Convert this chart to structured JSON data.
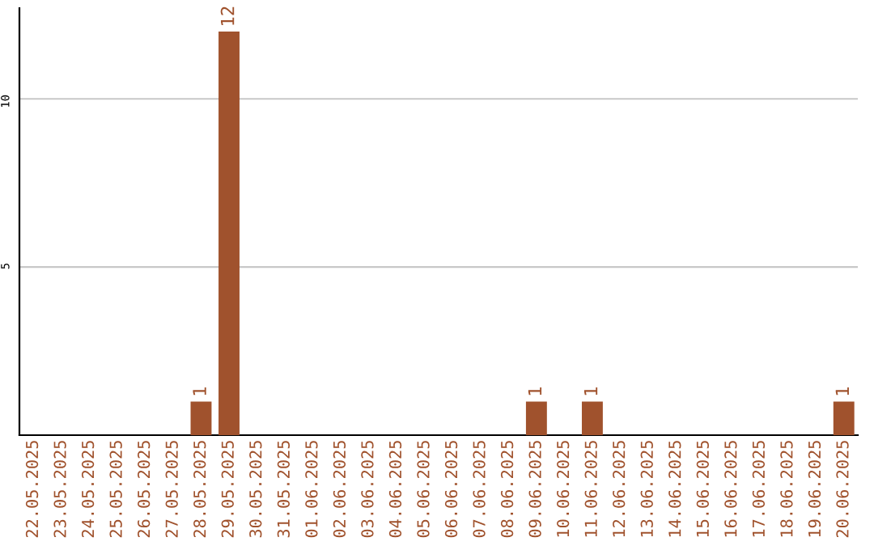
{
  "chart_data": {
    "type": "bar",
    "categories": [
      "22.05.2025",
      "23.05.2025",
      "24.05.2025",
      "25.05.2025",
      "26.05.2025",
      "27.05.2025",
      "28.05.2025",
      "29.05.2025",
      "30.05.2025",
      "31.05.2025",
      "01.06.2025",
      "02.06.2025",
      "03.06.2025",
      "04.06.2025",
      "05.06.2025",
      "06.06.2025",
      "07.06.2025",
      "08.06.2025",
      "09.06.2025",
      "10.06.2025",
      "11.06.2025",
      "12.06.2025",
      "13.06.2025",
      "14.06.2025",
      "15.06.2025",
      "16.06.2025",
      "17.06.2025",
      "18.06.2025",
      "19.06.2025",
      "20.06.2025"
    ],
    "values": [
      0,
      0,
      0,
      0,
      0,
      0,
      1,
      12,
      0,
      0,
      0,
      0,
      0,
      0,
      0,
      0,
      0,
      0,
      1,
      0,
      1,
      0,
      0,
      0,
      0,
      0,
      0,
      0,
      0,
      1
    ],
    "value_labels": [
      null,
      null,
      null,
      null,
      null,
      null,
      "1",
      "12",
      null,
      null,
      null,
      null,
      null,
      null,
      null,
      null,
      null,
      null,
      "1",
      null,
      "1",
      null,
      null,
      null,
      null,
      null,
      null,
      null,
      null,
      "1"
    ],
    "color": "#a0522d",
    "ylim": [
      0,
      12.7
    ],
    "yticks": [
      5,
      10
    ],
    "grid": "y"
  }
}
